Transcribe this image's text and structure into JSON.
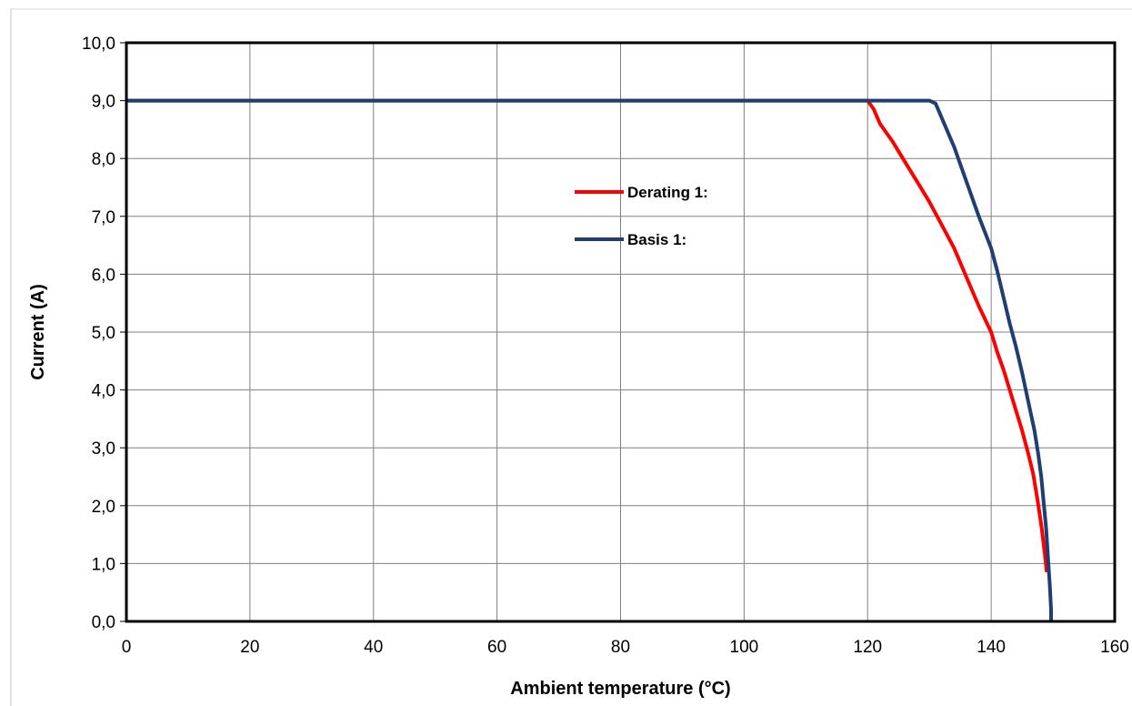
{
  "chart_data": {
    "type": "line",
    "title": "",
    "xlabel": "Ambient temperature (°C)",
    "ylabel": "Current (A)",
    "xlim": [
      0,
      160
    ],
    "ylim": [
      0,
      10
    ],
    "x_ticks": [
      0,
      20,
      40,
      60,
      80,
      100,
      120,
      140,
      160
    ],
    "x_tick_labels": [
      "0",
      "20",
      "40",
      "60",
      "80",
      "100",
      "120",
      "140",
      "160"
    ],
    "y_ticks": [
      0,
      1,
      2,
      3,
      4,
      5,
      6,
      7,
      8,
      9,
      10
    ],
    "y_tick_labels": [
      "0,0",
      "1,0",
      "2,0",
      "3,0",
      "4,0",
      "5,0",
      "6,0",
      "7,0",
      "8,0",
      "9,0",
      "10,0"
    ],
    "grid": true,
    "legend_position": "center-right",
    "series": [
      {
        "name": "Derating 1:",
        "color": "#ff0000",
        "points": [
          [
            0,
            9.0
          ],
          [
            120,
            9.0
          ],
          [
            121,
            8.85
          ],
          [
            122,
            8.6
          ],
          [
            124,
            8.3
          ],
          [
            126,
            7.95
          ],
          [
            128,
            7.6
          ],
          [
            130,
            7.25
          ],
          [
            132,
            6.85
          ],
          [
            134,
            6.45
          ],
          [
            136,
            5.95
          ],
          [
            138,
            5.45
          ],
          [
            140,
            5.0
          ],
          [
            141,
            4.65
          ],
          [
            142,
            4.35
          ],
          [
            143,
            4.0
          ],
          [
            144,
            3.65
          ],
          [
            145,
            3.3
          ],
          [
            146,
            2.9
          ],
          [
            146.8,
            2.55
          ],
          [
            147.5,
            2.1
          ],
          [
            148.2,
            1.6
          ],
          [
            148.7,
            1.15
          ],
          [
            149,
            0.85
          ]
        ]
      },
      {
        "name": "Basis 1:",
        "color": "#1f3f74",
        "points": [
          [
            0,
            9.0
          ],
          [
            130,
            9.0
          ],
          [
            131,
            8.95
          ],
          [
            132,
            8.7
          ],
          [
            134,
            8.2
          ],
          [
            136,
            7.6
          ],
          [
            138,
            7.0
          ],
          [
            140,
            6.45
          ],
          [
            141,
            6.05
          ],
          [
            142,
            5.6
          ],
          [
            143,
            5.15
          ],
          [
            144,
            4.75
          ],
          [
            145,
            4.3
          ],
          [
            146,
            3.8
          ],
          [
            147,
            3.3
          ],
          [
            147.6,
            2.9
          ],
          [
            148.1,
            2.5
          ],
          [
            148.5,
            2.05
          ],
          [
            148.9,
            1.6
          ],
          [
            149.2,
            1.1
          ],
          [
            149.5,
            0.6
          ],
          [
            149.7,
            0.2
          ],
          [
            149.7,
            0.0
          ]
        ]
      }
    ]
  }
}
